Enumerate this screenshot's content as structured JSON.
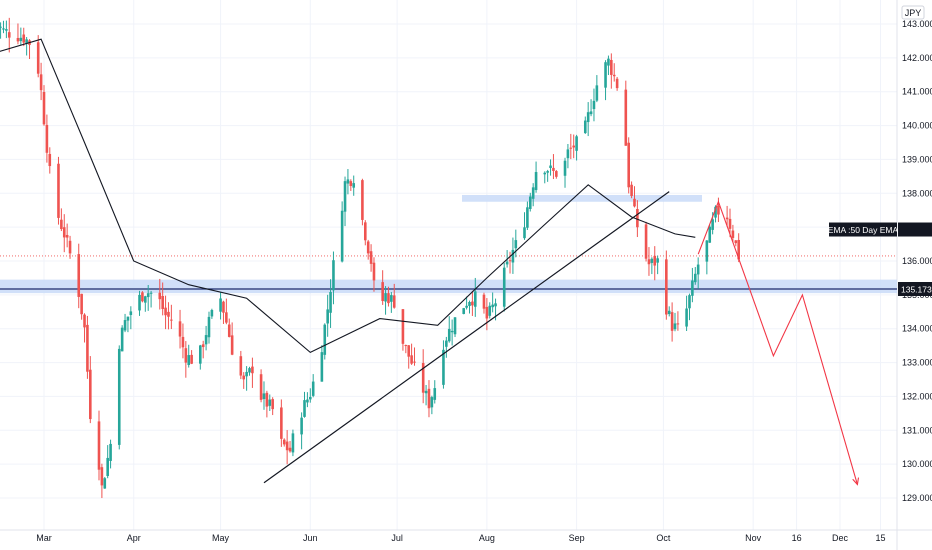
{
  "chart_data": {
    "type": "candlestick",
    "currency": "JPY",
    "price_axis": {
      "min": 128.5,
      "max": 143.5,
      "ticks": [
        "129.000",
        "130.000",
        "131.000",
        "132.000",
        "133.000",
        "134.000",
        "135.000",
        "136.000",
        "137.000",
        "138.000",
        "139.000",
        "140.000",
        "141.000",
        "142.000",
        "143.000"
      ]
    },
    "time_axis": {
      "labels": [
        "Mar",
        "Apr",
        "May",
        "Jun",
        "Jul",
        "Aug",
        "Sep",
        "Oct",
        "Nov",
        "16",
        "Dec",
        "15"
      ]
    },
    "current_price": "135.173",
    "indicator_label": "EMA :50 Day EMA",
    "last_close_estimate": 136.15,
    "support_zone": [
      135.05,
      135.45
    ],
    "resistance_zone": [
      137.75,
      137.95
    ],
    "trendline": [
      {
        "date": "May 16",
        "price": 129.45
      },
      {
        "date": "Oct 3",
        "price": 138.05
      }
    ],
    "projection_path": [
      {
        "date": "Oct 13",
        "price": 136.2
      },
      {
        "date": "Oct 20",
        "price": 137.75
      },
      {
        "date": "Nov 8",
        "price": 133.2
      },
      {
        "date": "Nov 18",
        "price": 135.0
      },
      {
        "date": "Dec 7",
        "price": 129.4
      }
    ],
    "ema_path": [
      {
        "date": "Feb 10",
        "price": 142.1
      },
      {
        "date": "Feb 28",
        "price": 142.55
      },
      {
        "date": "Mar 15",
        "price": 139.5
      },
      {
        "date": "Apr 1",
        "price": 136.0
      },
      {
        "date": "Apr 20",
        "price": 135.3
      },
      {
        "date": "May 10",
        "price": 134.9
      },
      {
        "date": "Jun 1",
        "price": 133.3
      },
      {
        "date": "Jun 25",
        "price": 134.3
      },
      {
        "date": "Jul 15",
        "price": 134.1
      },
      {
        "date": "Aug 1",
        "price": 135.5
      },
      {
        "date": "Aug 20",
        "price": 137.0
      },
      {
        "date": "Sep 5",
        "price": 138.25
      },
      {
        "date": "Sep 20",
        "price": 137.3
      },
      {
        "date": "Oct 5",
        "price": 136.8
      },
      {
        "date": "Oct 12",
        "price": 136.7
      }
    ],
    "colors": {
      "up": "#26a69a",
      "down": "#ef5350",
      "zone": "#c9daf8",
      "ema": "#131722",
      "projection": "#f23645",
      "grid": "#f0f3fa"
    }
  }
}
